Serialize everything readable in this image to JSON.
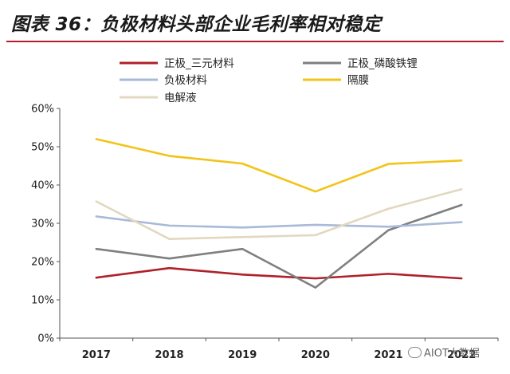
{
  "figure": {
    "title": "图表 36：负极材料头部企业毛利率相对稳定",
    "watermark": "AIOT大数据"
  },
  "chart_data": {
    "type": "line",
    "title": "图表 36：负极材料头部企业毛利率相对稳定",
    "xlabel": "",
    "ylabel": "",
    "x": [
      "2017",
      "2018",
      "2019",
      "2020",
      "2021",
      "2022"
    ],
    "ylim": [
      0,
      60
    ],
    "yticks": [
      "0%",
      "10%",
      "20%",
      "30%",
      "40%",
      "50%",
      "60%"
    ],
    "grid": false,
    "legend_position": "top",
    "series": [
      {
        "name": "正极_三元材料",
        "color": "#b0202a",
        "values": [
          15.8,
          18.3,
          16.6,
          15.6,
          16.8,
          15.6
        ]
      },
      {
        "name": "正极_磷酸铁锂",
        "color": "#7f7f7f",
        "values": [
          23.3,
          20.8,
          23.3,
          13.2,
          28.2,
          34.8
        ]
      },
      {
        "name": "负极材料",
        "color": "#a9b9d8",
        "values": [
          31.8,
          29.4,
          28.9,
          29.6,
          29.1,
          30.3
        ]
      },
      {
        "name": "隔膜",
        "color": "#f2c418",
        "values": [
          52.0,
          47.6,
          45.6,
          38.3,
          45.5,
          46.4
        ]
      },
      {
        "name": "电解液",
        "color": "#e2d8c0",
        "values": [
          35.7,
          25.9,
          26.4,
          26.9,
          33.8,
          38.9
        ]
      }
    ]
  }
}
